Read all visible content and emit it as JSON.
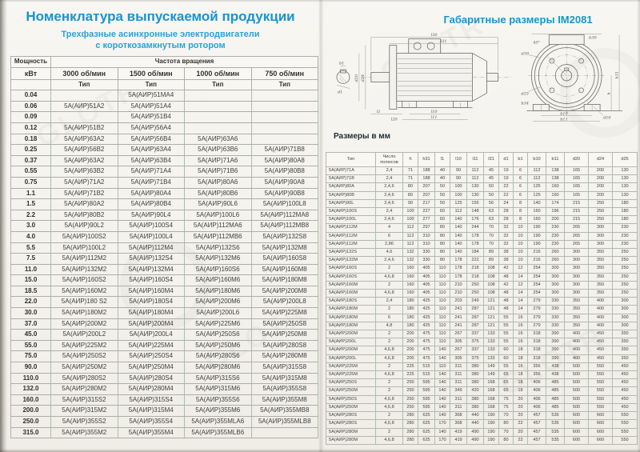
{
  "watermark": "GLOTR",
  "colors": {
    "accent_blue": "#1795d1"
  },
  "left_page": {
    "title": "Номенклатура выпускаемой продукции",
    "subtitle_line1": "Трехфазные асинхронные электродвигатели",
    "subtitle_line2": "с короткозамкнутым ротором",
    "table": {
      "power_header": "Мощность",
      "power_unit": "кВт",
      "freq_header": "Частота вращения",
      "speed_columns": [
        "3000 об/мин",
        "1500 об/мин",
        "1000 об/мин",
        "750 об/мин"
      ],
      "type_label": "Тип",
      "rows": [
        [
          "0.04",
          "",
          "5А(АИР)51МА4",
          "",
          ""
        ],
        [
          "0.06",
          "5А(АИР)51А2",
          "5А(АИР)51А4",
          "",
          ""
        ],
        [
          "0.09",
          "",
          "5А(АИР)51В4",
          "",
          ""
        ],
        [
          "0.12",
          "5А(АИР)51В2",
          "5А(АИР)56А4",
          "",
          ""
        ],
        [
          "0.18",
          "5А(АИР)63А2",
          "5А(АИР)56В4",
          "5А(АИР)63А6",
          ""
        ],
        [
          "0.25",
          "5А(АИР)56В2",
          "5А(АИР)63А4",
          "5А(АИР)63В6",
          "5А(АИР)71В8"
        ],
        [
          "0.37",
          "5А(АИР)63А2",
          "5А(АИР)63В4",
          "5А(АИР)71А6",
          "5А(АИР)80А8"
        ],
        [
          "0.55",
          "5А(АИР)63В2",
          "5А(АИР)71А4",
          "5А(АИР)71В6",
          "5А(АИР)80В8"
        ],
        [
          "0.75",
          "5А(АИР)71А2",
          "5А(АИР)71В4",
          "5А(АИР)80А6",
          "5А(АИР)90А8"
        ],
        [
          "1.1",
          "5А(АИР)71В2",
          "5А(АИР)80А4",
          "5А(АИР)80В6",
          "5А(АИР)90В8"
        ],
        [
          "1.5",
          "5А(АИР)80А2",
          "5А(АИР)80В4",
          "5А(АИР)90L6",
          "5А(АИР)100L8"
        ],
        [
          "2.2",
          "5А(АИР)80В2",
          "5А(АИР)90L4",
          "5А(АИР)100L6",
          "5А(АИР)112МА8"
        ],
        [
          "3.0",
          "5А(АИР)90L2",
          "5А(АИР)100S4",
          "5А(АИР)112МА6",
          "5А(АИР)112МВ8"
        ],
        [
          "4.0",
          "5А(АИР)100S2",
          "5А(АИР)100L4",
          "5А(АИР)112МВ6",
          "5А(АИР)132S8"
        ],
        [
          "5.5",
          "5А(АИР)100L2",
          "5А(АИР)112М4",
          "5А(АИР)132S6",
          "5А(АИР)132М8"
        ],
        [
          "7.5",
          "5А(АИР)112М2",
          "5А(АИР)132S4",
          "5А(АИР)132М6",
          "5А(АИР)160S8"
        ],
        [
          "11.0",
          "5А(АИР)132М2",
          "5А(АИР)132М4",
          "5А(АИР)160S6",
          "5А(АИР)160М8"
        ],
        [
          "15.0",
          "5А(АИР)160S2",
          "5А(АИР)160S4",
          "5А(АИР)160М6",
          "5А(АИР)180М8"
        ],
        [
          "18.5",
          "5А(АИР)160М2",
          "5А(АИР)160М4",
          "5А(АИР)180М6",
          "5А(АИР)200М8"
        ],
        [
          "22.0",
          "5А(АИР)180 S2",
          "5А(АИР)180S4",
          "5А(АИР)200М6",
          "5А(АИР)200L8"
        ],
        [
          "30.0",
          "5А(АИР)180М2",
          "5А(АИР)180М4",
          "5А(АИР)200L6",
          "5А(АИР)225М8"
        ],
        [
          "37.0",
          "5А(АИР)200М2",
          "5А(АИР)200М4",
          "5А(АИР)225М6",
          "5А(АИР)250S8"
        ],
        [
          "45.0",
          "5А(АИР)200L2",
          "5А(АИР)200L4",
          "5А(АИР)250S6",
          "5А(АИР)250М8"
        ],
        [
          "55.0",
          "5А(АИР)225М2",
          "5А(АИР)225М4",
          "5А(АИР)250М6",
          "5А(АИР)280S8"
        ],
        [
          "75.0",
          "5А(АИР)250S2",
          "5А(АИР)250S4",
          "5А(АИР)280S6",
          "5А(АИР)280М8"
        ],
        [
          "90.0",
          "5А(АИР)250М2",
          "5А(АИР)250М4",
          "5А(АИР)280М6",
          "5А(АИР)315S8"
        ],
        [
          "110.0",
          "5А(АИР)280S2",
          "5А(АИР)280S4",
          "5А(АИР)315S6",
          "5А(АИР)315М8"
        ],
        [
          "132.0",
          "5А(АИР)280М2",
          "5А(АИР)280М4",
          "5А(АИР)315М6",
          "5А(АИР)355S8"
        ],
        [
          "160.0",
          "5А(АИР)315S2",
          "5А(АИР)315S4",
          "5А(АИР)355S6",
          "5А(АИР)355М8"
        ],
        [
          "200.0",
          "5А(АИР)315М2",
          "5А(АИР)315М4",
          "5А(АИР)355М6",
          "5А(АИР)355МВ8"
        ],
        [
          "250.0",
          "5А(АИР)355S2",
          "5А(АИР)355S4",
          "5А(АИР)355МLА6",
          "5А(АИР)355МLВ8"
        ],
        [
          "315.0",
          "5А(АИР)355М2",
          "5А(АИР)355М4",
          "5А(АИР)355МLВ6",
          ""
        ]
      ]
    }
  },
  "right_page": {
    "title": "Габаритные размеры  IM2081",
    "dimensions_label": "Размеры в мм",
    "drawing": {
      "l30": "l30",
      "l31": "l31",
      "l10": "l10",
      "l11": "l11",
      "l1": "l1",
      "l20": "l20",
      "b1": "b1",
      "d1": "d1",
      "d24": "d24",
      "d20": "d20",
      "d30": "d30",
      "d25": "d25",
      "b30": "b30",
      "angle": "45°",
      "h": "h",
      "h31": "h31",
      "d10": "d10",
      "b10": "b10",
      "b11": "b11",
      "b34": "b34"
    },
    "table": {
      "columns": [
        "Тип",
        "Число полюсов",
        "h",
        "h31",
        "l1",
        "l10",
        "l11",
        "l31",
        "d1",
        "b1",
        "b10",
        "b11",
        "d20",
        "d24",
        "d25"
      ],
      "rows": [
        [
          "5А(АИР)71А",
          "2,4",
          "71",
          "188",
          "40",
          "90",
          "112",
          "45",
          "19",
          "6",
          "112",
          "138",
          "165",
          "200",
          "130"
        ],
        [
          "5А(АИР)71В",
          "2,4",
          "71",
          "188",
          "40",
          "90",
          "112",
          "45",
          "19",
          "6",
          "112",
          "138",
          "165",
          "200",
          "130"
        ],
        [
          "5А(АИР)80А",
          "2,4,6",
          "80",
          "207",
          "50",
          "100",
          "130",
          "50",
          "22",
          "6",
          "125",
          "160",
          "165",
          "200",
          "130"
        ],
        [
          "5А(АИР)80В",
          "2,4,6",
          "80",
          "207",
          "50",
          "100",
          "130",
          "50",
          "22",
          "6",
          "125",
          "160",
          "165",
          "200",
          "130"
        ],
        [
          "5А(АИР)90L",
          "2,4,6",
          "90",
          "217",
          "50",
          "125",
          "155",
          "56",
          "24",
          "8",
          "140",
          "174",
          "215",
          "250",
          "180"
        ],
        [
          "5А(АИР)100S",
          "2,4",
          "100",
          "227",
          "60",
          "112",
          "148",
          "63",
          "28",
          "8",
          "160",
          "196",
          "215",
          "250",
          "180"
        ],
        [
          "5А(АИР)100L",
          "2,4,6",
          "100",
          "277",
          "60",
          "140",
          "176",
          "63",
          "28",
          "8",
          "160",
          "200",
          "215",
          "250",
          "180"
        ],
        [
          "5А(АИР)112М",
          "4",
          "112",
          "297",
          "80",
          "140",
          "244",
          "70",
          "32",
          "10",
          "190",
          "230",
          "265",
          "300",
          "230"
        ],
        [
          "5А(АИР)112М",
          "6",
          "112",
          "310",
          "80",
          "140",
          "178",
          "70",
          "32",
          "10",
          "190",
          "230",
          "265",
          "300",
          "230"
        ],
        [
          "5А(АИР)112М",
          "2,86",
          "112",
          "310",
          "80",
          "140",
          "178",
          "70",
          "32",
          "10",
          "190",
          "230",
          "265",
          "300",
          "230"
        ],
        [
          "5А(АИР)132S",
          "4,6",
          "132",
          "330",
          "80",
          "140",
          "184",
          "89",
          "38",
          "10",
          "216",
          "260",
          "300",
          "350",
          "250"
        ],
        [
          "5А(АИР)132М",
          "2,4,6",
          "132",
          "330",
          "80",
          "178",
          "222",
          "89",
          "38",
          "10",
          "216",
          "260",
          "300",
          "350",
          "250"
        ],
        [
          "5А(АИР)160S",
          "2",
          "160",
          "405",
          "110",
          "178",
          "218",
          "108",
          "42",
          "12",
          "254",
          "300",
          "300",
          "350",
          "250"
        ],
        [
          "5А(АИР)160S",
          "4,6,8",
          "160",
          "405",
          "110",
          "178",
          "218",
          "108",
          "48",
          "14",
          "254",
          "300",
          "300",
          "350",
          "250"
        ],
        [
          "5А(АИР)160М",
          "2",
          "160",
          "405",
          "110",
          "210",
          "250",
          "108",
          "42",
          "12",
          "254",
          "300",
          "300",
          "350",
          "250"
        ],
        [
          "5А(АИР)160М",
          "4,6,8",
          "160",
          "405",
          "110",
          "210",
          "250",
          "108",
          "48",
          "14",
          "254",
          "300",
          "300",
          "350",
          "250"
        ],
        [
          "5А(АИР)180S",
          "2,4",
          "180",
          "425",
          "110",
          "203",
          "249",
          "121",
          "48",
          "14",
          "279",
          "330",
          "350",
          "400",
          "300"
        ],
        [
          "5А(АИР)180М",
          "2",
          "180",
          "425",
          "110",
          "241",
          "287",
          "121",
          "48",
          "14",
          "279",
          "330",
          "350",
          "400",
          "300"
        ],
        [
          "5А(АИР)180М",
          "6",
          "180",
          "425",
          "110",
          "241",
          "287",
          "121",
          "55",
          "16",
          "279",
          "330",
          "350",
          "400",
          "300"
        ],
        [
          "5А(АИР)180М",
          "4,8",
          "180",
          "425",
          "110",
          "241",
          "287",
          "121",
          "55",
          "16",
          "279",
          "330",
          "350",
          "400",
          "300"
        ],
        [
          "5А(АИР)200М",
          "2",
          "200",
          "475",
          "110",
          "267",
          "337",
          "133",
          "55",
          "16",
          "318",
          "390",
          "400",
          "450",
          "350"
        ],
        [
          "5А(АИР)200L",
          "2",
          "200",
          "475",
          "110",
          "305",
          "375",
          "133",
          "55",
          "16",
          "318",
          "390",
          "400",
          "450",
          "350"
        ],
        [
          "5А(АИР)200М",
          "4,6,8",
          "200",
          "475",
          "140",
          "267",
          "337",
          "133",
          "60",
          "18",
          "318",
          "390",
          "400",
          "450",
          "350"
        ],
        [
          "5А(АИР)200L",
          "4,6,8",
          "200",
          "475",
          "140",
          "305",
          "375",
          "133",
          "60",
          "18",
          "318",
          "390",
          "400",
          "450",
          "350"
        ],
        [
          "5А(АИР)225М",
          "2",
          "225",
          "515",
          "110",
          "311",
          "380",
          "149",
          "55",
          "16",
          "356",
          "438",
          "500",
          "550",
          "450"
        ],
        [
          "5А(АИР)225М",
          "4,6,8",
          "225",
          "515",
          "140",
          "311",
          "380",
          "149",
          "65",
          "18",
          "356",
          "438",
          "500",
          "550",
          "450"
        ],
        [
          "5А(АИР)250S",
          "2",
          "250",
          "595",
          "140",
          "311",
          "380",
          "168",
          "65",
          "18",
          "406",
          "485",
          "500",
          "550",
          "450"
        ],
        [
          "5А(АИР)250М",
          "2",
          "250",
          "595",
          "140",
          "349",
          "420",
          "168",
          "65",
          "18",
          "406",
          "485",
          "500",
          "550",
          "450"
        ],
        [
          "5А(АИР)250S",
          "4,6,8",
          "250",
          "595",
          "140",
          "311",
          "380",
          "168",
          "75",
          "20",
          "406",
          "485",
          "500",
          "550",
          "450"
        ],
        [
          "5А(АИР)250М",
          "4,6,8",
          "250",
          "595",
          "140",
          "311",
          "380",
          "168",
          "75",
          "20",
          "406",
          "485",
          "500",
          "550",
          "450"
        ],
        [
          "5А(АИР)280S",
          "2",
          "280",
          "625",
          "140",
          "368",
          "440",
          "190",
          "70",
          "20",
          "457",
          "535",
          "600",
          "660",
          "550"
        ],
        [
          "5А(АИР)280S",
          "4,6,8",
          "280",
          "625",
          "170",
          "368",
          "440",
          "190",
          "80",
          "22",
          "457",
          "535",
          "600",
          "660",
          "550"
        ],
        [
          "5А(АИР)280М",
          "2",
          "280",
          "625",
          "140",
          "419",
          "490",
          "190",
          "70",
          "20",
          "457",
          "535",
          "600",
          "660",
          "550"
        ],
        [
          "5А(АИР)280М",
          "4,6,8",
          "280",
          "625",
          "170",
          "419",
          "490",
          "190",
          "80",
          "22",
          "457",
          "535",
          "600",
          "660",
          "550"
        ]
      ]
    }
  }
}
